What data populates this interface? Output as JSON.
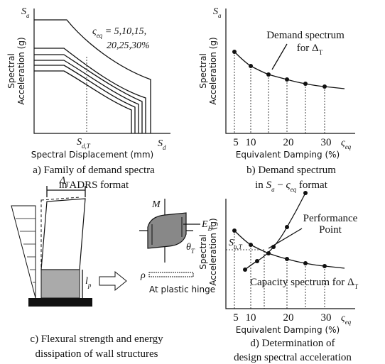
{
  "panels": [
    {
      "y_symbol": [
        "S",
        "a"
      ],
      "y_label": [
        "Spectral",
        "Acceleration (g)"
      ],
      "legend": [
        "ς",
        "eq",
        " = 5,10,15,",
        "20,25,30%"
      ],
      "x_marker": [
        "S",
        "d,T"
      ],
      "x_symbol": [
        "S",
        "d"
      ],
      "x_label": "Spectral Displacement (mm)",
      "caption": [
        "a) Family of demand spectra",
        "in ADRS format"
      ]
    },
    {
      "y_symbol": [
        "S",
        "a"
      ],
      "y_label": [
        "Spectral",
        "Acceleration (g)"
      ],
      "annotation": [
        "Demand spectrum",
        "for Δ",
        "T"
      ],
      "x_ticks": [
        "5",
        "10",
        "20",
        "30"
      ],
      "x_symbol": [
        "ς",
        "eq"
      ],
      "x_label": "Equivalent Damping (%)",
      "caption": [
        "b) Demand spectrum",
        "in ",
        "S",
        "a",
        " − ",
        "ς",
        "eq",
        " format"
      ]
    },
    {
      "labels": {
        "drift": [
          "Δ",
          "T"
        ],
        "moment": "M",
        "energy": [
          "E",
          "D"
        ],
        "rotation": [
          "θ",
          "T"
        ],
        "hinge_length": [
          "l",
          "p"
        ],
        "rho": "ρ",
        "hinge": "At plastic hinge"
      },
      "caption": [
        "c) Flexural strength and energy",
        "dissipation of wall structures"
      ]
    },
    {
      "y_label": [
        "Spectral",
        "Acceleration (g)"
      ],
      "y_marker": [
        "S",
        "a,T"
      ],
      "annotation": [
        "Performance",
        "Point"
      ],
      "capacity": [
        "Capacity spectrum for Δ",
        "T"
      ],
      "x_ticks": [
        "5",
        "10",
        "20",
        "30"
      ],
      "x_symbol": [
        "ς",
        "eq"
      ],
      "x_label": "Equivalent Damping (%)",
      "caption": [
        "d) Determination of",
        "design spectral acceleration"
      ]
    }
  ]
}
